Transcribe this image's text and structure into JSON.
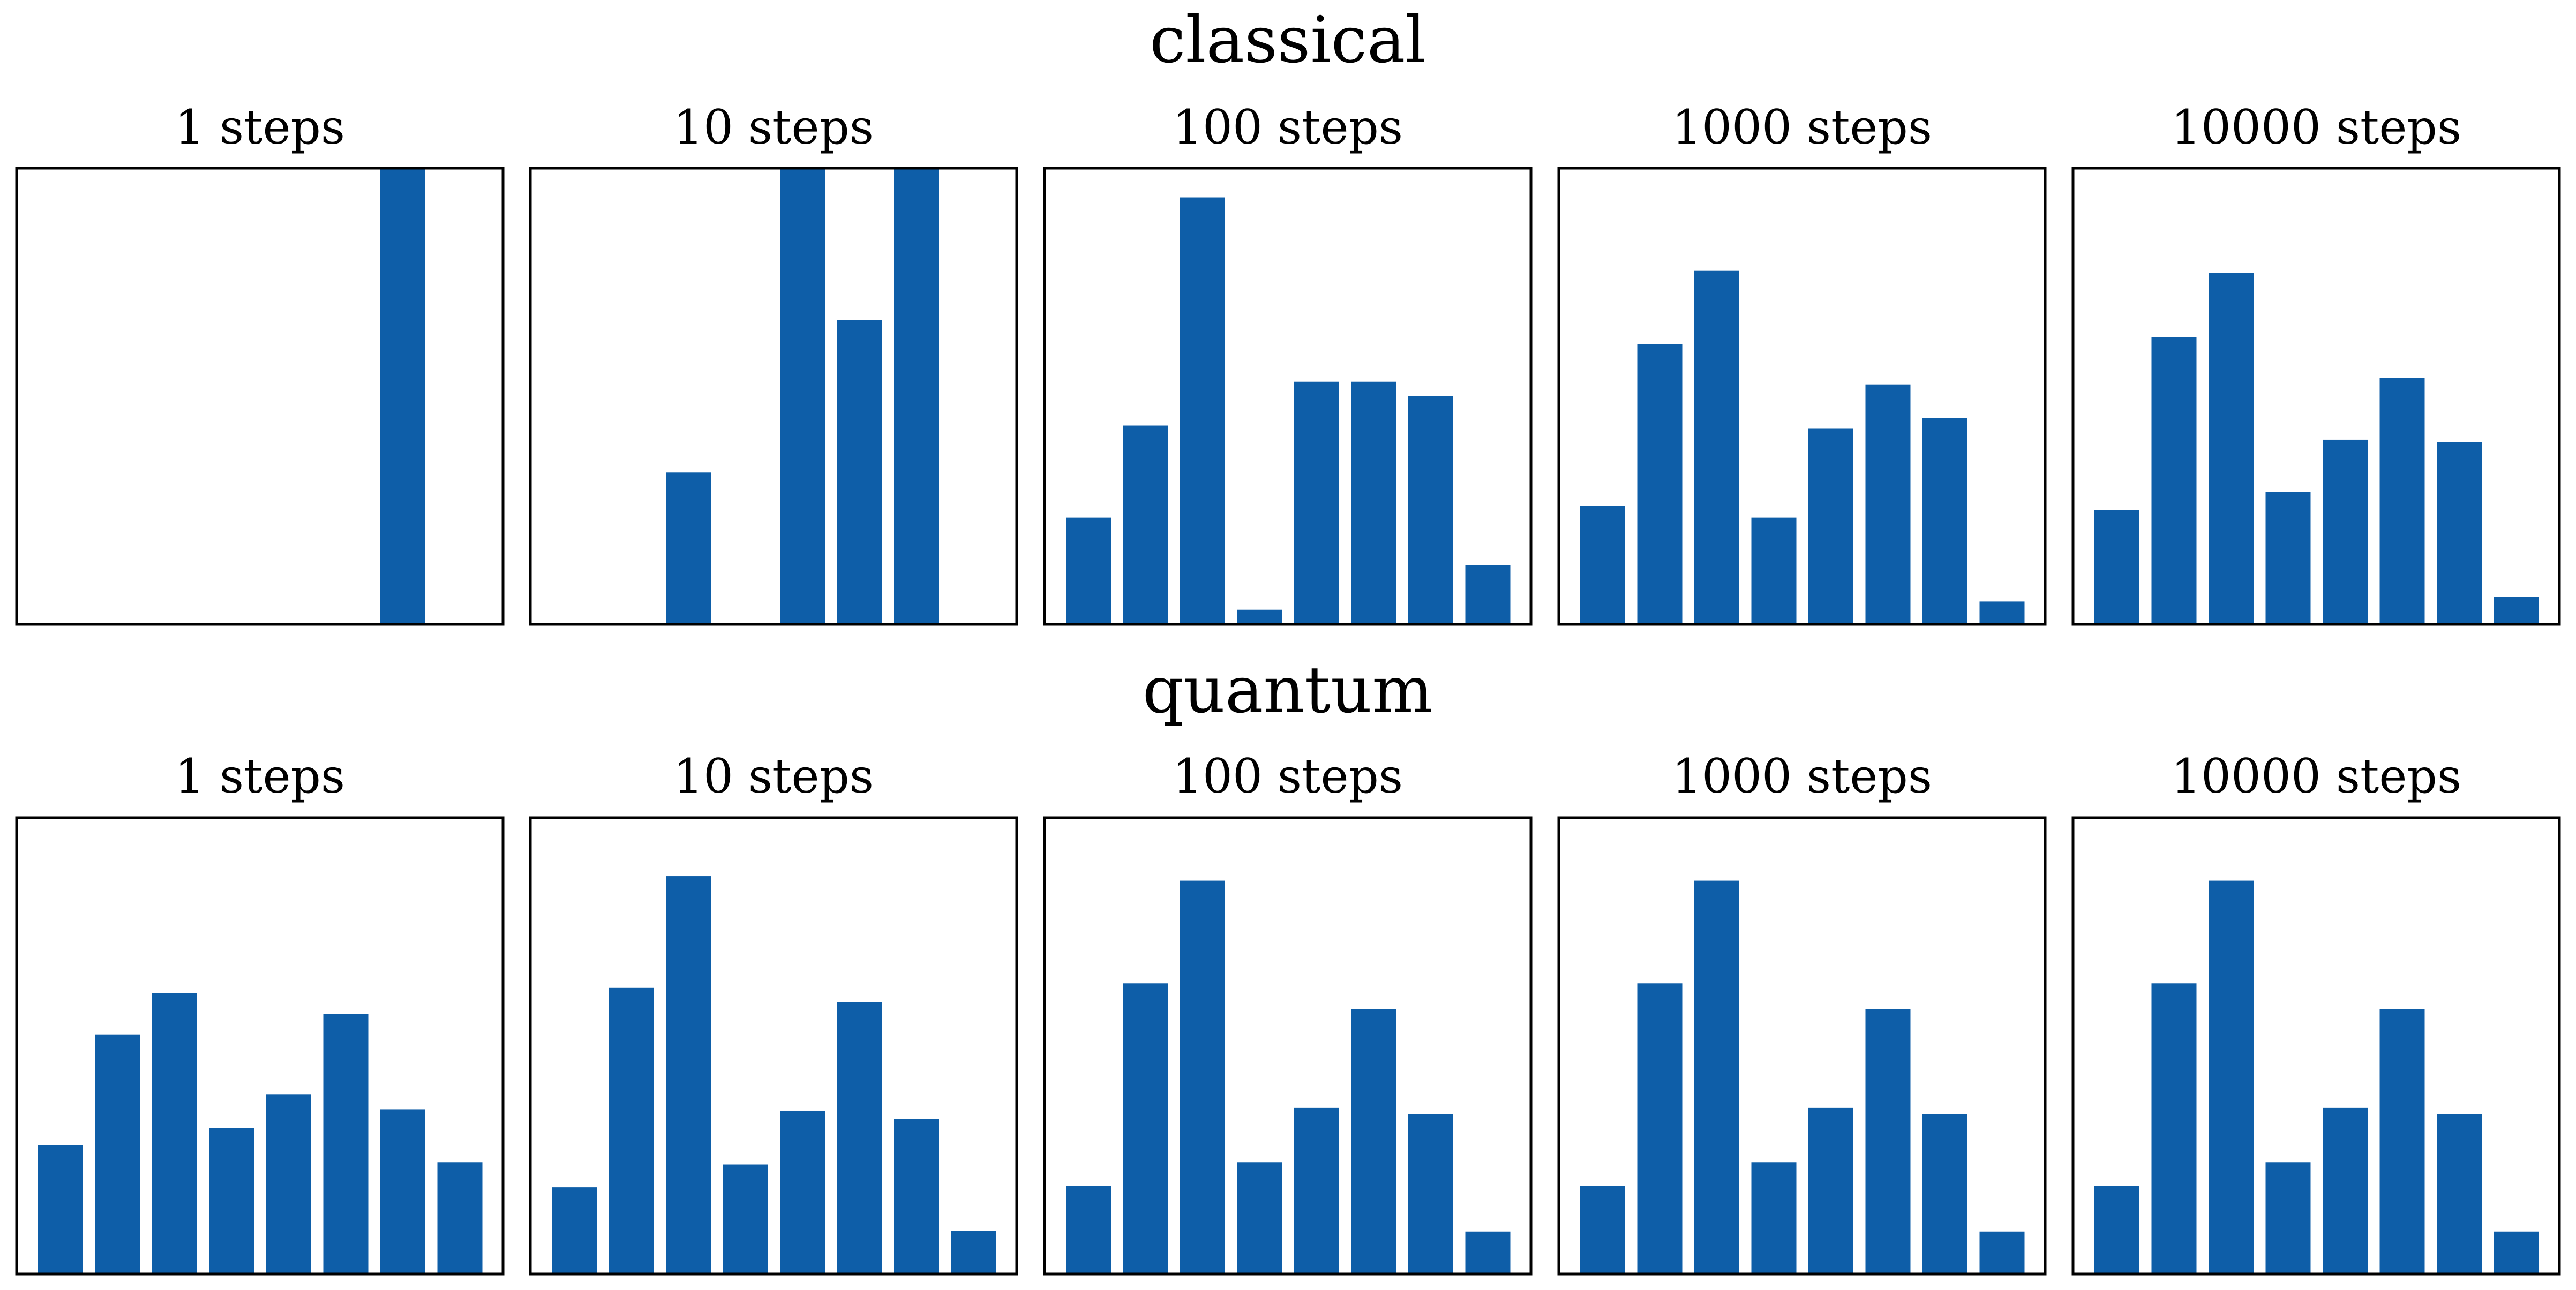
{
  "bar_color": "#0e5ea8",
  "chart_data": [
    {
      "type": "bar",
      "row_title": "classical",
      "panels": [
        {
          "title": "1 steps",
          "values": [
            0,
            0,
            0,
            0,
            0,
            0,
            1,
            0
          ]
        },
        {
          "title": "10 steps",
          "values": [
            0,
            0,
            0.333,
            0,
            1,
            0.667,
            1,
            0
          ]
        },
        {
          "title": "100 steps",
          "values": [
            0.234,
            0.436,
            0.936,
            0.032,
            0.532,
            0.532,
            0.5,
            0.13
          ]
        },
        {
          "title": "1000 steps",
          "values": [
            0.26,
            0.615,
            0.775,
            0.234,
            0.429,
            0.525,
            0.452,
            0.05
          ]
        },
        {
          "title": "10000 steps",
          "values": [
            0.25,
            0.63,
            0.77,
            0.29,
            0.405,
            0.54,
            0.4,
            0.06
          ]
        }
      ]
    },
    {
      "type": "bar",
      "row_title": "quantum",
      "panels": [
        {
          "title": "1 steps",
          "values": [
            0.282,
            0.525,
            0.616,
            0.32,
            0.394,
            0.57,
            0.361,
            0.245
          ]
        },
        {
          "title": "10 steps",
          "values": [
            0.19,
            0.627,
            0.872,
            0.24,
            0.358,
            0.596,
            0.34,
            0.095
          ]
        },
        {
          "title": "100 steps",
          "values": [
            0.193,
            0.637,
            0.862,
            0.245,
            0.364,
            0.58,
            0.35,
            0.093
          ]
        },
        {
          "title": "1000 steps",
          "values": [
            0.193,
            0.637,
            0.862,
            0.245,
            0.364,
            0.58,
            0.35,
            0.093
          ]
        },
        {
          "title": "10000 steps",
          "values": [
            0.193,
            0.637,
            0.862,
            0.245,
            0.364,
            0.58,
            0.35,
            0.093
          ]
        }
      ]
    }
  ]
}
